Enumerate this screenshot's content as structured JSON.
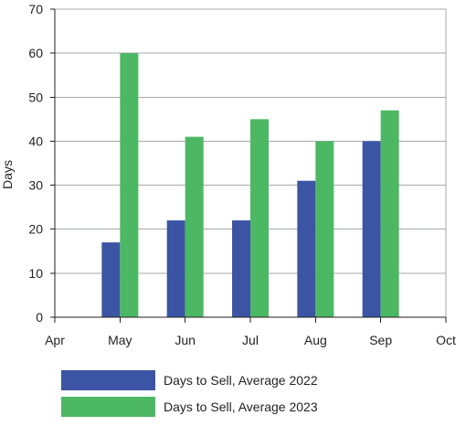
{
  "chart_data": {
    "type": "bar",
    "x_ticks": [
      "Apr",
      "May",
      "Jun",
      "Jul",
      "Aug",
      "Sep",
      "Oct"
    ],
    "categories": [
      "May",
      "Jun",
      "Jul",
      "Aug",
      "Sep"
    ],
    "series": [
      {
        "name": "Days to Sell, Average 2022",
        "values": [
          17,
          22,
          22,
          31,
          40
        ],
        "color": "#3b55a4"
      },
      {
        "name": "Days to Sell, Average 2023",
        "values": [
          60,
          41,
          45,
          40,
          47
        ],
        "color": "#4db863"
      }
    ],
    "ylabel": "Days",
    "xlabel": "",
    "title": "",
    "ylim": [
      0,
      70
    ],
    "yticks": [
      0,
      10,
      20,
      30,
      40,
      50,
      60,
      70
    ],
    "grid": true,
    "legend_position": "bottom"
  }
}
